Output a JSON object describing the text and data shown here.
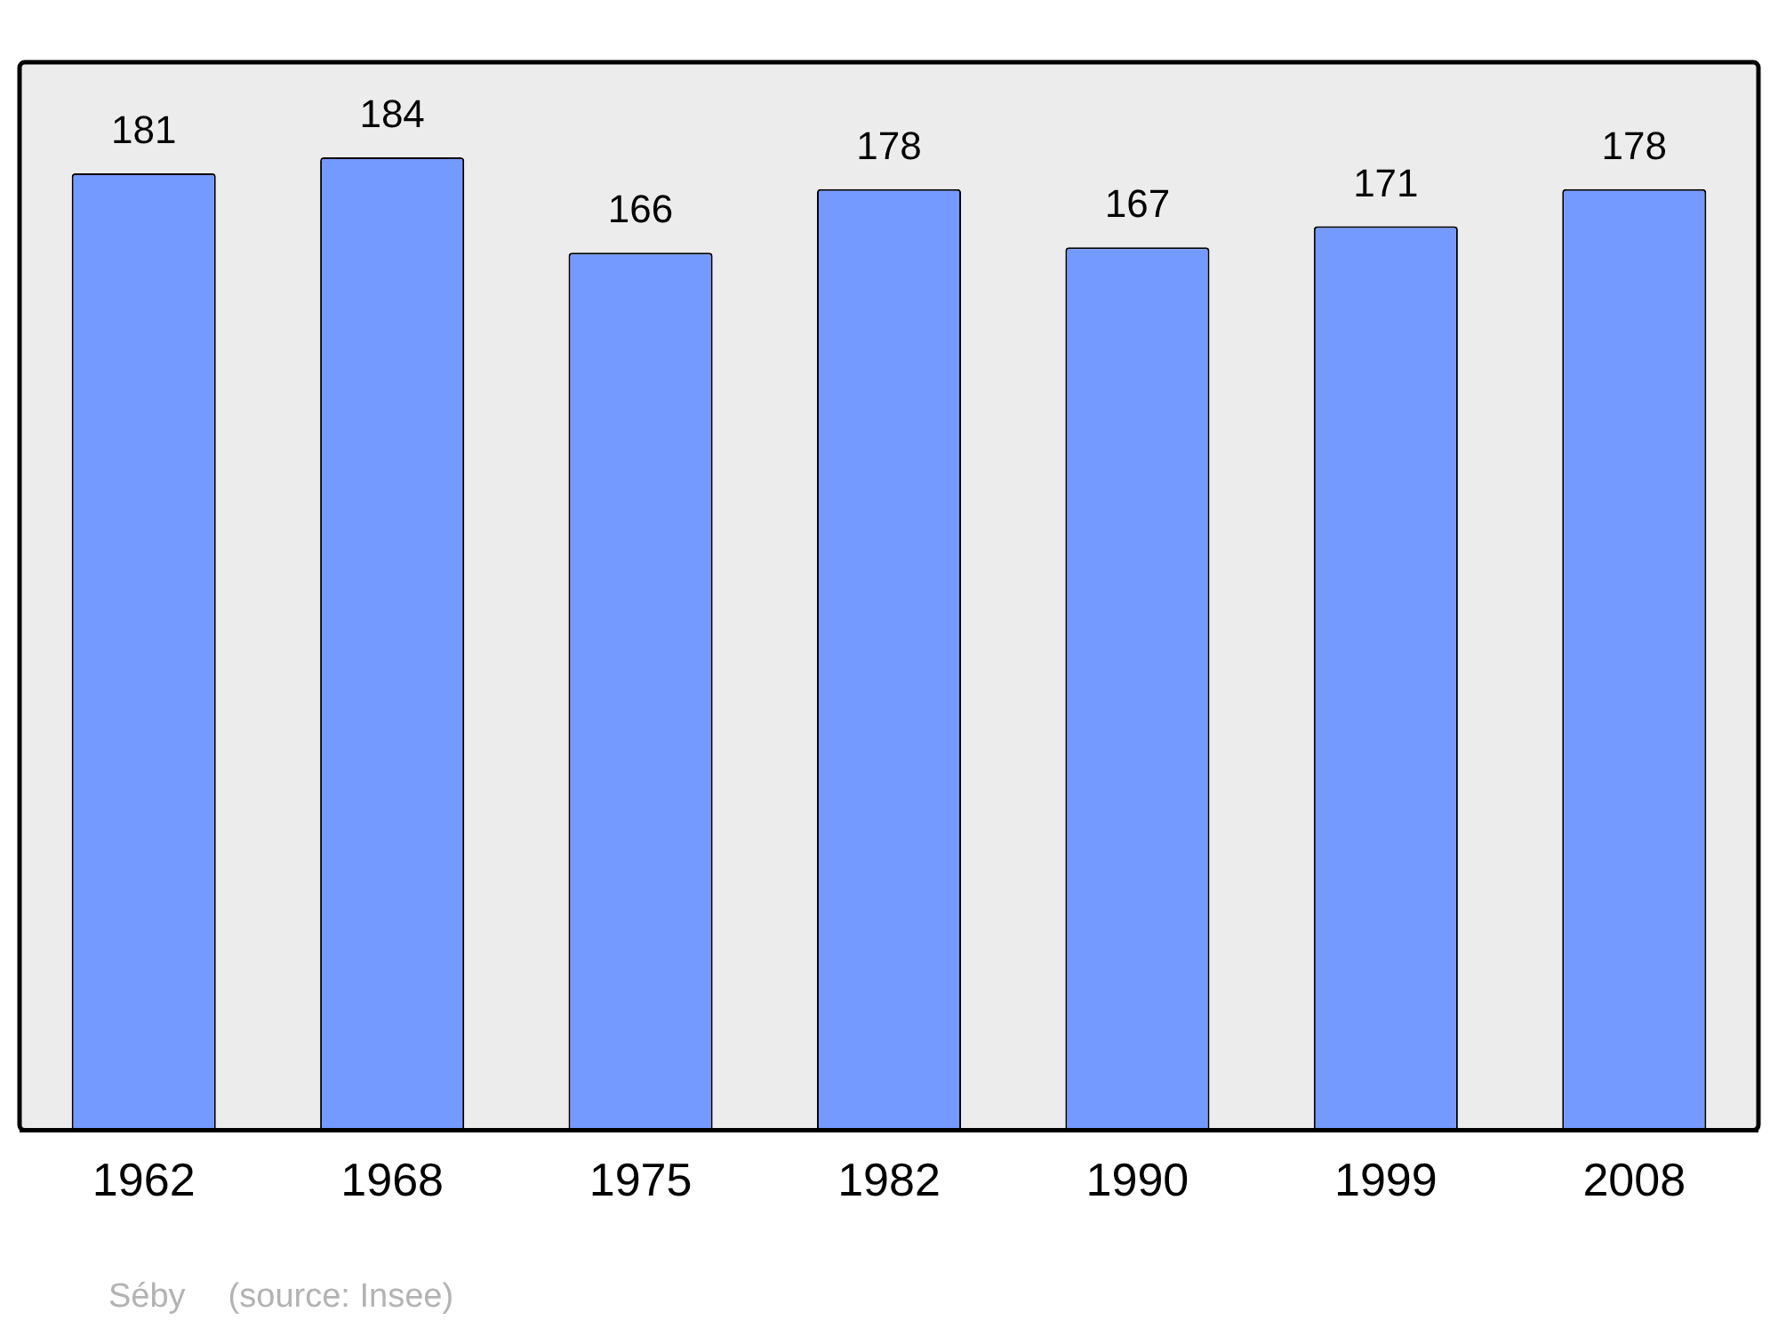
{
  "chart_data": {
    "type": "bar",
    "categories": [
      "1962",
      "1968",
      "1975",
      "1982",
      "1990",
      "1999",
      "2008"
    ],
    "values": [
      181,
      184,
      166,
      178,
      167,
      171,
      178
    ],
    "color": "#7499ff",
    "ylim": [
      0,
      202
    ],
    "data_labels": true,
    "grid": false,
    "legend": false,
    "annotations": [
      "Séby",
      "(source: Insee)"
    ]
  }
}
